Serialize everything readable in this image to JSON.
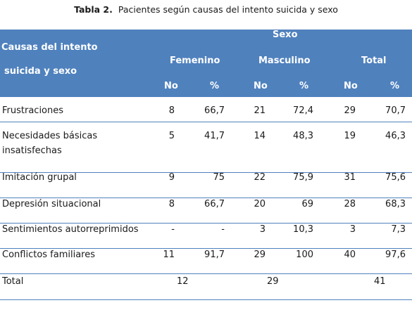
{
  "caption": {
    "prefix": "Tabla 2.",
    "text": "Pacientes según causas del intento suicida y sexo"
  },
  "header": {
    "col_title_line1": "Causas del intento",
    "col_title_line2": "suicida y sexo",
    "sexo": "Sexo",
    "groups": [
      "Femenino",
      "Masculino",
      "Total"
    ],
    "sub": [
      "No",
      "%",
      "No",
      "%",
      "No",
      "%"
    ]
  },
  "rows": [
    {
      "label": [
        "Frustraciones"
      ],
      "values": [
        "8",
        "66,7",
        "21",
        "72,4",
        "29",
        "70,7"
      ]
    },
    {
      "label": [
        "Necesidades básicas",
        "insatisfechas"
      ],
      "values": [
        "5",
        "41,7",
        "14",
        "48,3",
        "19",
        "46,3"
      ]
    },
    {
      "label": [
        "Imitación grupal"
      ],
      "values": [
        "9",
        "75",
        "22",
        "75,9",
        "31",
        "75,6"
      ]
    },
    {
      "label": [
        "Depresión situacional"
      ],
      "values": [
        "8",
        "66,7",
        "20",
        "69",
        "28",
        "68,3"
      ]
    },
    {
      "label": [
        "Sentimientos autorreprimidos"
      ],
      "values": [
        "-",
        "-",
        "3",
        "10,3",
        "3",
        "7,3"
      ]
    },
    {
      "label": [
        "Conflictos familiares"
      ],
      "values": [
        "11",
        "91,7",
        "29",
        "100",
        "40",
        "97,6"
      ]
    }
  ],
  "total": {
    "label": "Total",
    "values": [
      "12",
      "29",
      "41"
    ]
  },
  "colors": {
    "header_bg": "#4f81bd",
    "header_text": "#ffffff",
    "rule": "#4f81bd"
  }
}
